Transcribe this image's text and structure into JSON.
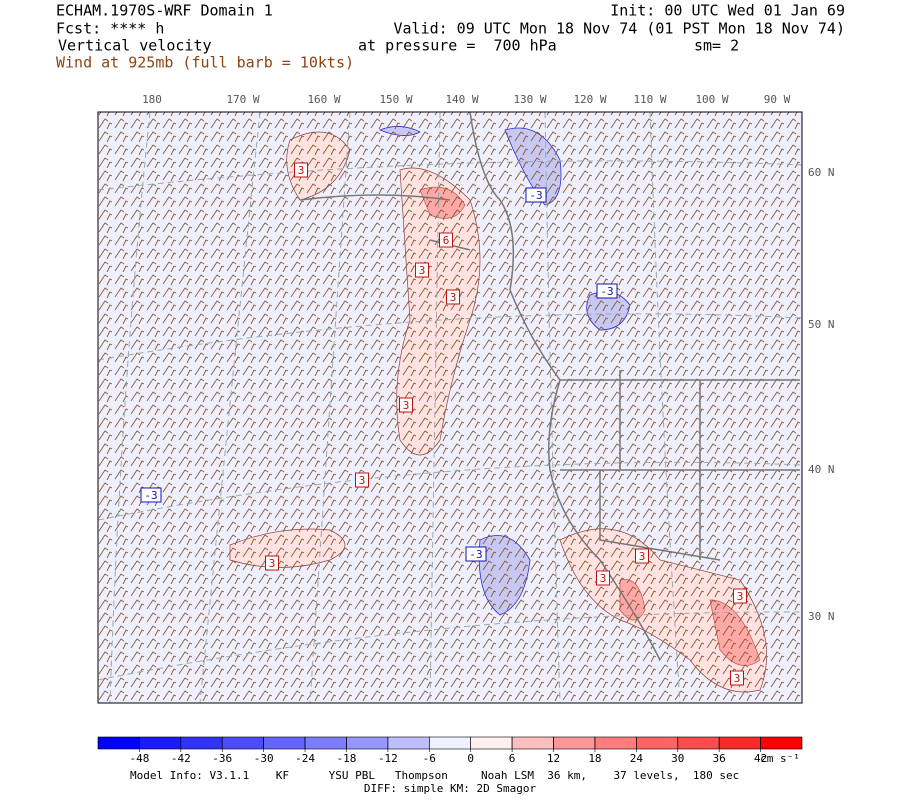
{
  "header": {
    "title": "ECHAM.1970S-WRF Domain 1",
    "forecast": "Fcst: **** h",
    "field": "Vertical velocity",
    "wind": "Wind at 925mb (full barb = 10kts)",
    "init": "Init: 00 UTC Wed 01 Jan 69",
    "valid": "Valid: 09 UTC Mon 18 Nov 74 (01 PST Mon 18 Nov 74)",
    "pressure": "at pressure =  700 hPa",
    "smoothing": "sm= 2"
  },
  "map": {
    "longitude_labels": [
      "180",
      "170 W",
      "160 W",
      "150 W",
      "140 W",
      "130 W",
      "120 W",
      "110 W",
      "100 W",
      "90 W"
    ],
    "latitude_labels": [
      "60 N",
      "50 N",
      "40 N",
      "30 N"
    ],
    "contour_labels": [
      "3",
      "3",
      "6",
      "3",
      "3",
      "3",
      "3",
      "-3",
      "-3",
      "-3",
      "-3",
      "3",
      "3",
      "3",
      "3"
    ]
  },
  "colorbar": {
    "ticks": [
      -48,
      -42,
      -36,
      -30,
      -24,
      -18,
      -12,
      -6,
      0,
      6,
      12,
      18,
      24,
      30,
      36,
      42
    ],
    "colors": [
      "#0000ff",
      "#1a1aff",
      "#3232ff",
      "#4b4bff",
      "#6464ff",
      "#7d7dff",
      "#9696ff",
      "#bebeff",
      "#f0f0ff",
      "#fff0f0",
      "#ffbebe",
      "#ff9696",
      "#ff7d7d",
      "#ff6464",
      "#ff4b4b",
      "#ff2828",
      "#ff0000"
    ],
    "units": "cm s⁻¹"
  },
  "footer": {
    "model_info": "Model Info: V3.1.1    KF      YSU PBL   Thompson     Noah LSM  36 km,    37 levels,  180 sec",
    "diff": "DIFF: simple KM: 2D Smagor"
  }
}
